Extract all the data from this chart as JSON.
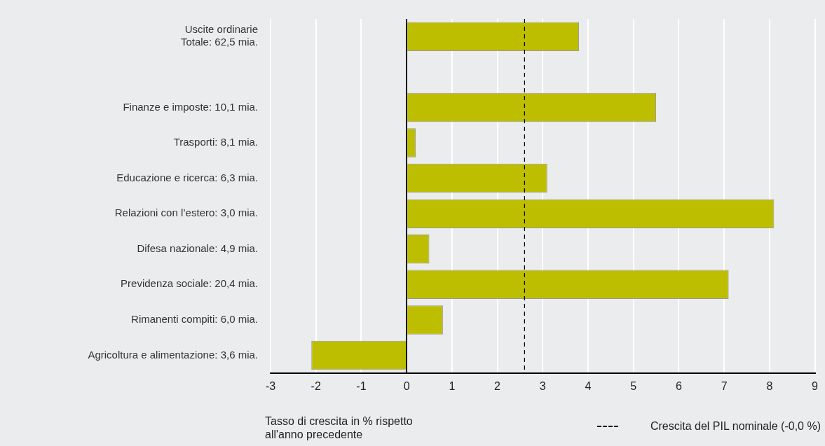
{
  "chart_data": {
    "type": "bar",
    "orientation": "horizontal",
    "xlabel": "Tasso di crescita in % rispetto all'anno precedente",
    "categories": [
      "Uscite ordinarie\nTotale: 62,5 mia.",
      null,
      "Finanze e imposte: 10,1 mia.",
      "Trasporti: 8,1 mia.",
      "Educazione e ricerca: 6,3 mia.",
      "Relazioni con l’estero: 3,0 mia.",
      "Difesa nazionale: 4,9 mia.",
      "Previdenza sociale: 20,4 mia.",
      "Rimanenti compiti: 6,0 mia.",
      "Agricoltura e alimentazione: 3,6 mia."
    ],
    "values": [
      3.8,
      null,
      5.5,
      0.2,
      3.1,
      8.1,
      0.5,
      7.1,
      0.8,
      -2.1
    ],
    "color": "#bebe00",
    "xlim": [
      -3,
      9
    ],
    "xticks": [
      -3,
      -2,
      -1,
      0,
      1,
      2,
      3,
      4,
      5,
      6,
      7,
      8,
      9
    ],
    "grid": "x",
    "ref_lines": [
      {
        "axis": "x",
        "value": 2.6,
        "label": "Crescita del PIL nominale (-0,0 %)",
        "line_style": "dashed",
        "color": "#000000"
      }
    ]
  }
}
